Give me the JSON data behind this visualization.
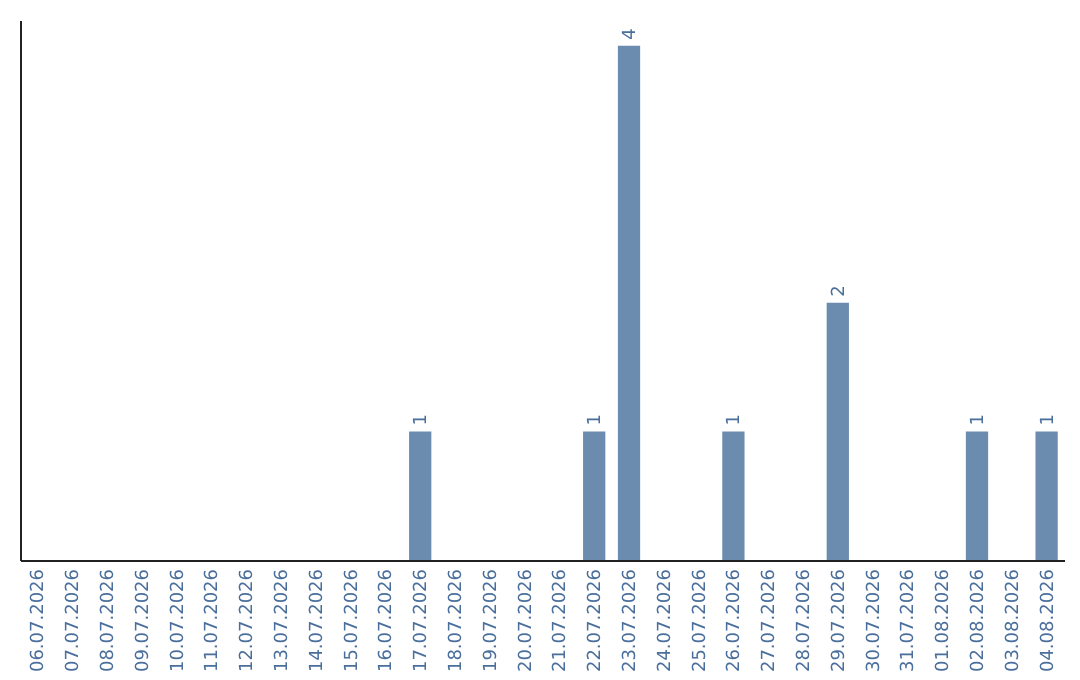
{
  "chart_data": {
    "type": "bar",
    "categories": [
      "06.07.2026",
      "07.07.2026",
      "08.07.2026",
      "09.07.2026",
      "10.07.2026",
      "11.07.2026",
      "12.07.2026",
      "13.07.2026",
      "14.07.2026",
      "15.07.2026",
      "16.07.2026",
      "17.07.2026",
      "18.07.2026",
      "19.07.2026",
      "20.07.2026",
      "21.07.2026",
      "22.07.2026",
      "23.07.2026",
      "24.07.2026",
      "25.07.2026",
      "26.07.2026",
      "27.07.2026",
      "28.07.2026",
      "29.07.2026",
      "30.07.2026",
      "31.07.2026",
      "01.08.2026",
      "02.08.2026",
      "03.08.2026",
      "04.08.2026"
    ],
    "values": [
      0,
      0,
      0,
      0,
      0,
      0,
      0,
      0,
      0,
      0,
      0,
      1,
      0,
      0,
      0,
      0,
      1,
      4,
      0,
      0,
      1,
      0,
      0,
      2,
      0,
      0,
      0,
      1,
      0,
      1
    ],
    "value_labels": [
      null,
      null,
      null,
      null,
      null,
      null,
      null,
      null,
      null,
      null,
      null,
      "1",
      null,
      null,
      null,
      null,
      "1",
      "4",
      null,
      null,
      "1",
      null,
      null,
      "2",
      null,
      null,
      null,
      "1",
      null,
      "1"
    ],
    "color": "#6b8cae",
    "ylim": [
      0,
      4.2
    ],
    "tick_labels": "x"
  }
}
